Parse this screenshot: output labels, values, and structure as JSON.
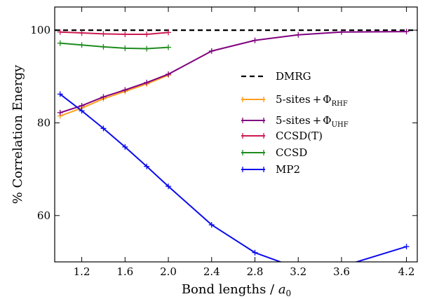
{
  "chart_data": {
    "type": "line",
    "xlabel": "Bond lengths / ",
    "xlabel_symbol": "a",
    "xlabel_subscript": "0",
    "ylabel": "% Correlation Energy",
    "xlim": [
      0.95,
      4.3
    ],
    "ylim": [
      50,
      105
    ],
    "xticks": [
      1.2,
      1.6,
      2.0,
      2.4,
      2.8,
      3.2,
      3.6,
      4.2
    ],
    "xtick_labels": [
      "1.2",
      "1.6",
      "2.0",
      "2.4",
      "2.8",
      "3.2",
      "3.6",
      "4.2"
    ],
    "yticks": [
      60,
      80,
      100
    ],
    "ytick_labels": [
      "60",
      "80",
      "100"
    ],
    "grid": false,
    "legend_position": "center-right",
    "reference_line": {
      "name": "DMRG",
      "y": 100,
      "style": "dashed",
      "color": "#000000"
    },
    "series": [
      {
        "name": "5-sites",
        "name_suffix": "Φ",
        "name_subscript": "RHF",
        "color": "#ff9f1c",
        "x": [
          1.0,
          1.2,
          1.4,
          1.6,
          1.8,
          2.0
        ],
        "y": [
          81.5,
          83.2,
          85.2,
          86.8,
          88.4,
          90.3
        ]
      },
      {
        "name": "5-sites",
        "name_suffix": "Φ",
        "name_subscript": "UHF",
        "color": "#800080",
        "x": [
          1.0,
          1.2,
          1.4,
          1.6,
          1.8,
          2.0,
          2.4,
          2.8,
          3.2,
          3.6,
          4.2
        ],
        "y": [
          82.2,
          83.7,
          85.6,
          87.1,
          88.7,
          90.5,
          95.5,
          97.8,
          99.0,
          99.6,
          99.7
        ]
      },
      {
        "name": "CCSD(T)",
        "color": "#cc1a50",
        "x": [
          1.0,
          1.2,
          1.4,
          1.6,
          1.8,
          2.0
        ],
        "y": [
          99.6,
          99.4,
          99.2,
          99.1,
          99.1,
          99.5
        ]
      },
      {
        "name": "CCSD",
        "color": "#1e8c1e",
        "x": [
          1.0,
          1.2,
          1.4,
          1.6,
          1.8,
          2.0
        ],
        "y": [
          97.2,
          96.8,
          96.4,
          96.1,
          96.0,
          96.3
        ]
      },
      {
        "name": "MP2",
        "color": "#0a0aee",
        "x": [
          1.0,
          1.2,
          1.4,
          1.6,
          1.8,
          2.0,
          2.4,
          2.8,
          3.2,
          3.6,
          4.2
        ],
        "y": [
          86.2,
          82.6,
          78.8,
          74.8,
          70.6,
          66.3,
          58.0,
          52.0,
          48.6,
          49.0,
          53.3
        ]
      }
    ]
  }
}
